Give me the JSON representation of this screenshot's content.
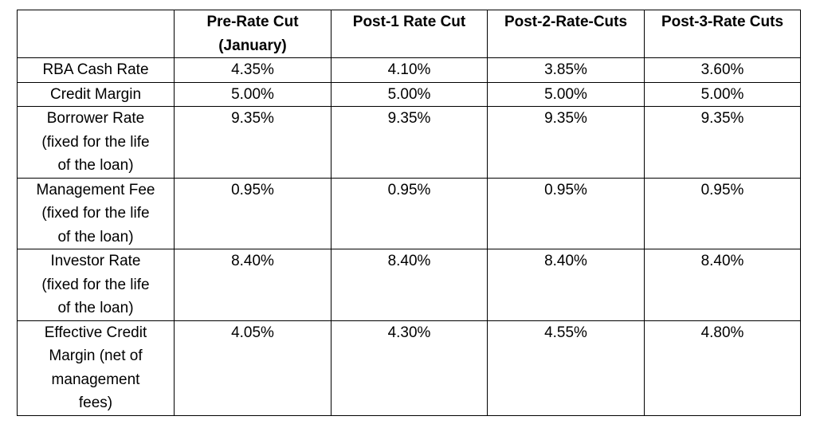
{
  "table": {
    "headers": [
      "",
      "Pre-Rate Cut (January)",
      "Post-1 Rate Cut",
      "Post-2-Rate-Cuts",
      "Post-3-Rate Cuts"
    ],
    "header_lines": [
      [
        ""
      ],
      [
        "Pre-Rate Cut",
        "(January)"
      ],
      [
        "Post-1 Rate Cut"
      ],
      [
        "Post-2-Rate-Cuts"
      ],
      [
        "Post-3-Rate Cuts"
      ]
    ],
    "rows": [
      {
        "label": "RBA Cash Rate",
        "label_lines": [
          "RBA Cash Rate"
        ],
        "values": [
          "4.35%",
          "4.10%",
          "3.85%",
          "3.60%"
        ]
      },
      {
        "label": "Credit Margin",
        "label_lines": [
          "Credit Margin"
        ],
        "values": [
          "5.00%",
          "5.00%",
          "5.00%",
          "5.00%"
        ]
      },
      {
        "label": "Borrower Rate (fixed for the life of the loan)",
        "label_lines": [
          "Borrower Rate",
          "(fixed for the life",
          "of the loan)"
        ],
        "values": [
          "9.35%",
          "9.35%",
          "9.35%",
          "9.35%"
        ]
      },
      {
        "label": "Management Fee (fixed for the life of the loan)",
        "label_lines": [
          "Management Fee",
          "(fixed for the life",
          "of the loan)"
        ],
        "values": [
          "0.95%",
          "0.95%",
          "0.95%",
          "0.95%"
        ]
      },
      {
        "label": "Investor Rate (fixed for the life of the loan)",
        "label_lines": [
          "Investor Rate",
          "(fixed for the life",
          "of the loan)"
        ],
        "values": [
          "8.40%",
          "8.40%",
          "8.40%",
          "8.40%"
        ]
      },
      {
        "label": "Effective Credit Margin (net of management fees)",
        "label_lines": [
          "Effective Credit",
          "Margin (net of",
          "management",
          "fees)"
        ],
        "values": [
          "4.05%",
          "4.30%",
          "4.55%",
          "4.80%"
        ]
      }
    ]
  }
}
